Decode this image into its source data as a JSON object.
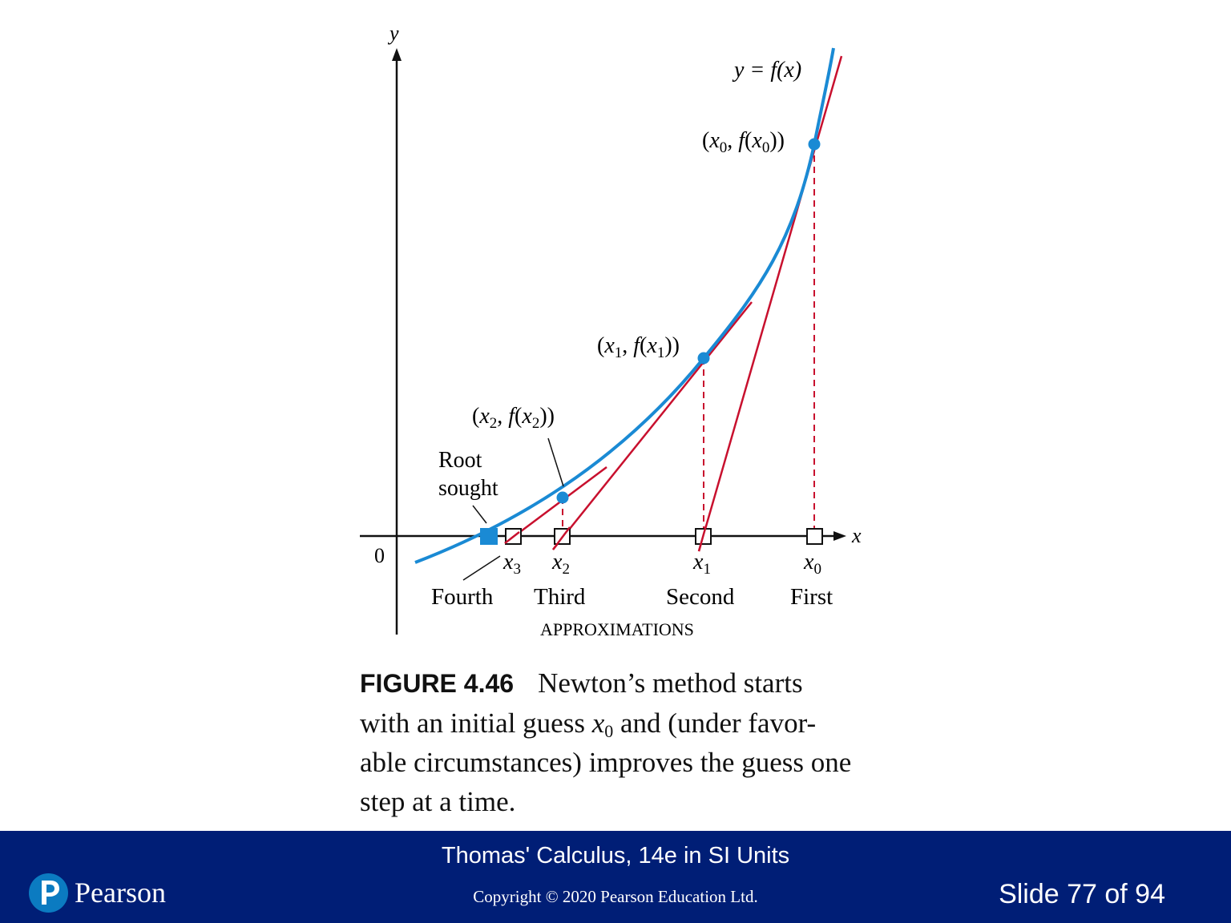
{
  "figure": {
    "axis_labels": {
      "y": "y",
      "x": "x",
      "origin": "0"
    },
    "curve_label": "y = f(x)",
    "points": [
      {
        "label_var": "x",
        "label_sub": "0"
      },
      {
        "label_var": "x",
        "label_sub": "1"
      },
      {
        "label_var": "x",
        "label_sub": "2"
      }
    ],
    "root_label": [
      "Root",
      "sought"
    ],
    "x_ticks": [
      {
        "var": "x",
        "sub": "3",
        "order": "Fourth"
      },
      {
        "var": "x",
        "sub": "2",
        "order": "Third"
      },
      {
        "var": "x",
        "sub": "1",
        "order": "Second"
      },
      {
        "var": "x",
        "sub": "0",
        "order": "First"
      }
    ],
    "approximations_label": "APPROXIMATIONS",
    "colors": {
      "curve": "#1a8ad4",
      "tangent": "#c8102e",
      "axis": "#111111",
      "marker": "#1a8ad4"
    }
  },
  "caption": {
    "label": "FIGURE 4.46",
    "text_before": "Newton’s method starts with an initial guess ",
    "var": "x",
    "sub": "0",
    "text_after": " and (under favor-able circumstances) improves the guess one step at a time."
  },
  "footer": {
    "book": "Thomas' Calculus, 14e in SI Units",
    "copyright": "Copyright © 2020 Pearson Education Ltd.",
    "slide": "Slide 77 of 94",
    "brand": "Pearson",
    "background": "#001e76",
    "logo_color": "#0b7bc1"
  }
}
